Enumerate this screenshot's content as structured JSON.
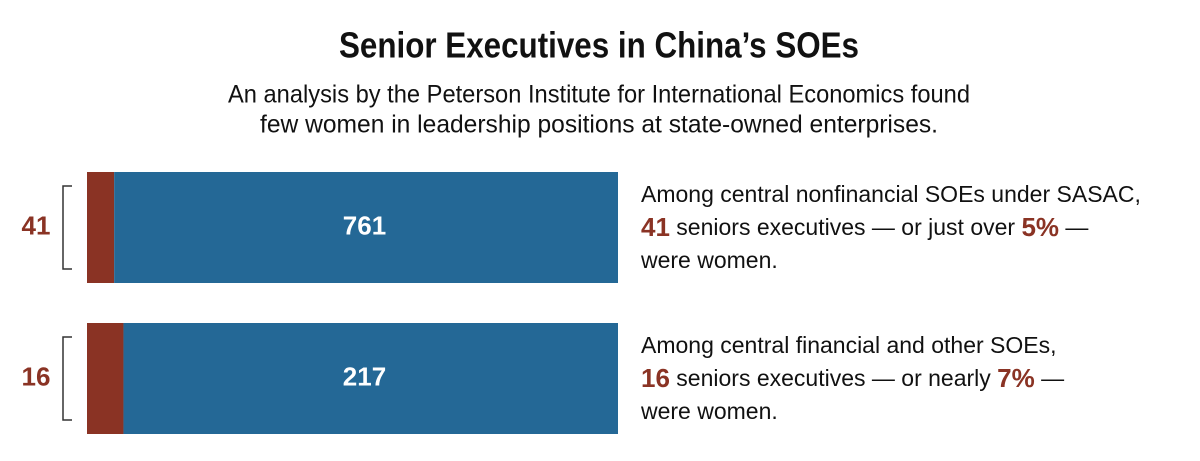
{
  "chart_data": {
    "type": "bar",
    "stacked": "percent",
    "orientation": "horizontal",
    "title": "Senior Executives in China’s SOEs",
    "subtitle": [
      "An analysis by the Peterson Institute for International Economics found",
      "few women in leadership positions at state-owned enterprises."
    ],
    "series": [
      {
        "color": "#8a3324",
        "values": [
          41,
          16
        ]
      },
      {
        "color": "#246896",
        "values": [
          761,
          217
        ]
      }
    ],
    "annotations": [
      [
        [
          {
            "text": "Among central nonfinancial SOEs under SASAC,"
          }
        ],
        [
          {
            "text": "41",
            "em": true
          },
          {
            "text": " seniors executives — or just over "
          },
          {
            "text": "5%",
            "em": true
          },
          {
            "text": " —"
          }
        ],
        [
          {
            "text": "were women."
          }
        ]
      ],
      [
        [
          {
            "text": "Among central financial and other SOEs,"
          }
        ],
        [
          {
            "text": "16",
            "em": true
          },
          {
            "text": " seniors executives — or nearly "
          },
          {
            "text": "7%",
            "em": true
          },
          {
            "text": " —"
          }
        ],
        [
          {
            "text": "were women."
          }
        ]
      ]
    ]
  }
}
